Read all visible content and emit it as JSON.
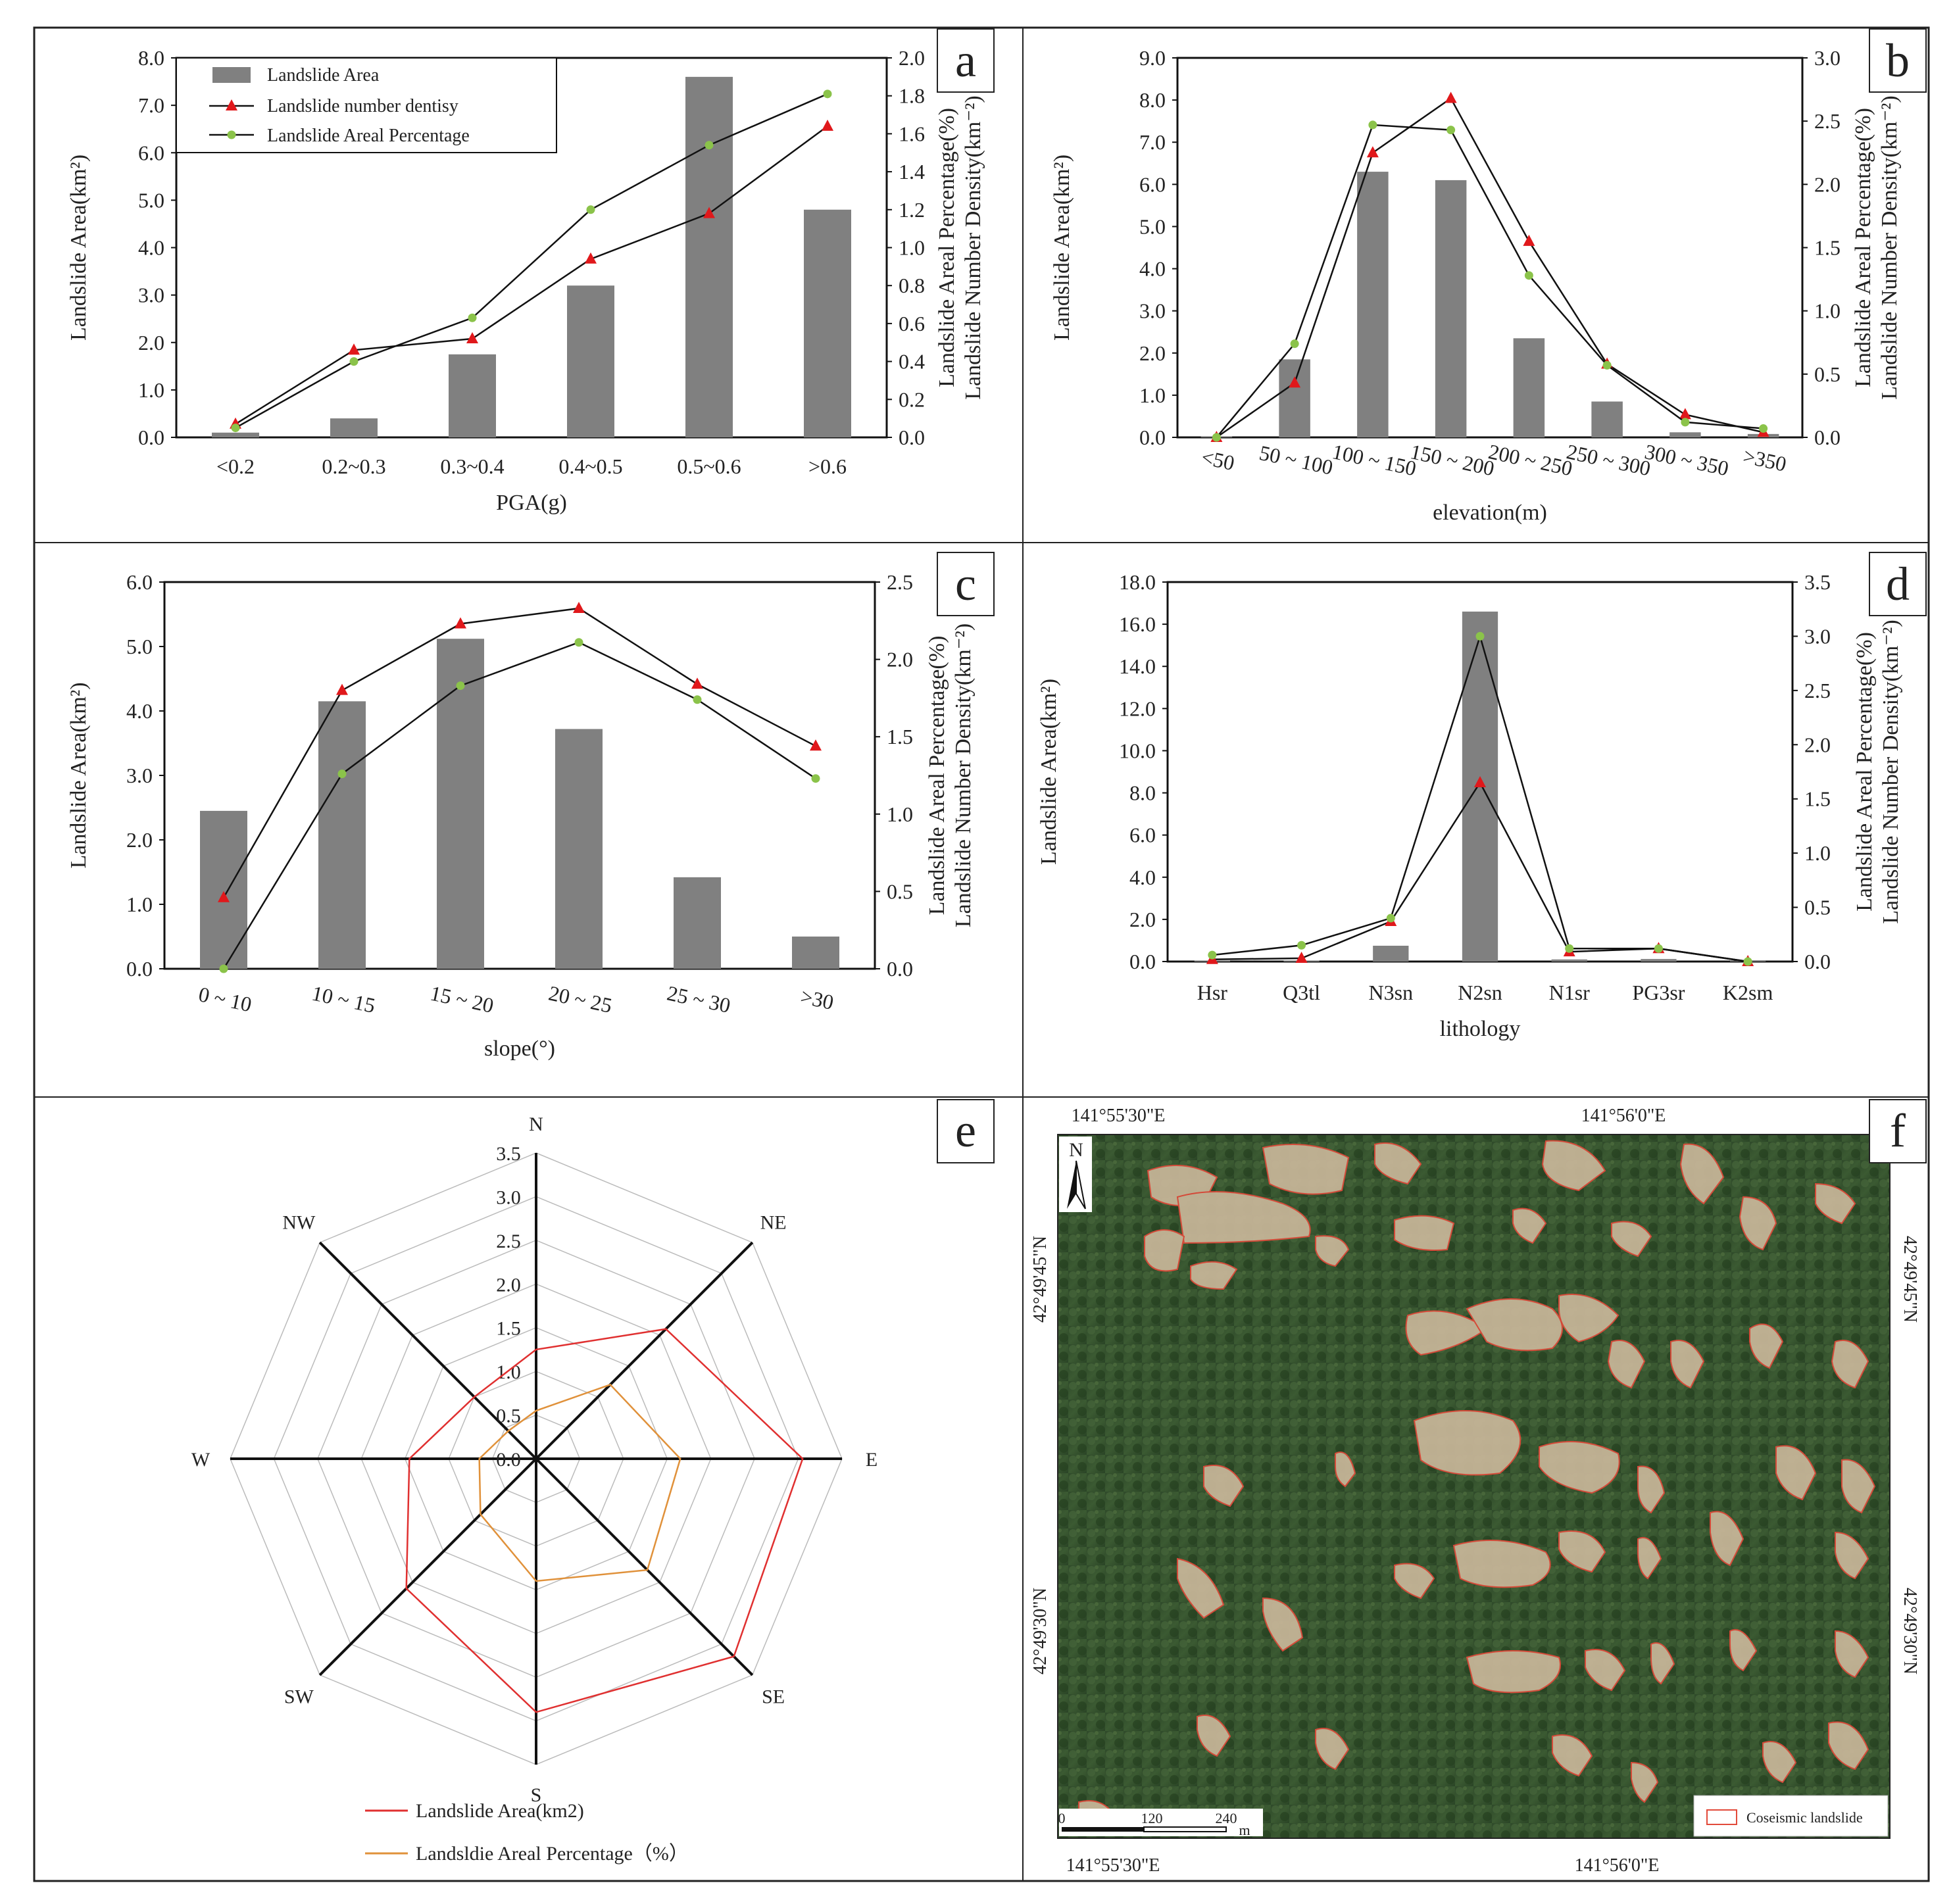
{
  "colors": {
    "bar": "#808080",
    "line_number": "#111111",
    "marker_number": "#e0181b",
    "line_areal": "#111111",
    "marker_areal": "#8bc34a",
    "radar_area": "#e03030",
    "radar_pct": "#e0913a"
  },
  "chart_data": [
    {
      "id": "a",
      "letter": "a",
      "type": "bar",
      "categories": [
        "<0.2",
        "0.2~0.3",
        "0.3~0.4",
        "0.4~0.5",
        "0.5~0.6",
        ">0.6"
      ],
      "series": [
        {
          "name": "Landslide Area",
          "axis": "left",
          "type": "bar",
          "values": [
            0.1,
            0.4,
            1.75,
            3.2,
            7.6,
            4.8
          ]
        },
        {
          "name": "Landslide number dentisy",
          "axis": "right",
          "type": "line",
          "marker": "triangle",
          "values": [
            0.07,
            0.46,
            0.52,
            0.94,
            1.18,
            1.64
          ]
        },
        {
          "name": "Landslide Areal Percentage",
          "axis": "right",
          "type": "line",
          "marker": "circle",
          "values": [
            0.05,
            0.4,
            0.63,
            1.2,
            1.54,
            1.81
          ]
        }
      ],
      "xlabel": "PGA(g)",
      "ylabel": "Landslide Area(km²)",
      "ylabel_right": [
        "Landslide Areal Percentage(%)",
        "Landslide Number Density(km⁻²)"
      ],
      "ylim": [
        0,
        8
      ],
      "ylim_right": [
        0,
        2
      ],
      "yticks": [
        "0.0",
        "1.0",
        "2.0",
        "3.0",
        "4.0",
        "5.0",
        "6.0",
        "7.0",
        "8.0"
      ],
      "yticks_right": [
        "0.0",
        "0.2",
        "0.4",
        "0.6",
        "0.8",
        "1.0",
        "1.2",
        "1.4",
        "1.6",
        "1.8",
        "2.0"
      ],
      "legend": [
        "Landslide Area",
        "Landslide number dentisy",
        "Landslide Areal Percentage"
      ],
      "legend_position": "top-left"
    },
    {
      "id": "b",
      "letter": "b",
      "type": "bar",
      "categories": [
        "<50",
        "50 ~ 100",
        "100 ~ 150",
        "150 ~ 200",
        "200 ~ 250",
        "250 ~ 300",
        "300 ~ 350",
        ">350"
      ],
      "series": [
        {
          "name": "Landslide Area",
          "axis": "left",
          "type": "bar",
          "values": [
            0.02,
            1.85,
            6.3,
            6.1,
            2.35,
            0.85,
            0.12,
            0.08
          ]
        },
        {
          "name": "Landslide number dentisy",
          "axis": "right",
          "type": "line",
          "marker": "triangle",
          "values": [
            0.0,
            0.43,
            2.25,
            2.68,
            1.55,
            0.58,
            0.18,
            0.04
          ]
        },
        {
          "name": "Landslide Areal Percentage",
          "axis": "right",
          "type": "line",
          "marker": "circle",
          "values": [
            0.0,
            0.74,
            2.47,
            2.43,
            1.28,
            0.57,
            0.12,
            0.07
          ]
        }
      ],
      "xlabel": "elevation(m)",
      "ylabel": "Landslide Area(km²)",
      "ylabel_right": [
        "Landslide Areal Percentage(%)",
        "Landslide Number Density(km⁻²)"
      ],
      "ylim": [
        0,
        9
      ],
      "ylim_right": [
        0,
        3
      ],
      "yticks": [
        "0.0",
        "1.0",
        "2.0",
        "3.0",
        "4.0",
        "5.0",
        "6.0",
        "7.0",
        "8.0",
        "9.0"
      ],
      "yticks_right": [
        "0.0",
        "0.5",
        "1.0",
        "1.5",
        "2.0",
        "2.5",
        "3.0"
      ]
    },
    {
      "id": "c",
      "letter": "c",
      "type": "bar",
      "categories": [
        "0 ~ 10",
        "10 ~ 15",
        "15 ~ 20",
        "20 ~ 25",
        "25 ~ 30",
        ">30"
      ],
      "series": [
        {
          "name": "Landslide Area",
          "axis": "left",
          "type": "bar",
          "values": [
            2.45,
            4.15,
            5.12,
            3.72,
            1.42,
            0.5
          ]
        },
        {
          "name": "Landslide number dentisy",
          "axis": "right",
          "type": "line",
          "marker": "triangle",
          "values": [
            0.46,
            1.8,
            2.23,
            2.33,
            1.84,
            1.44
          ]
        },
        {
          "name": "Landslide Areal Percentage",
          "axis": "right",
          "type": "line",
          "marker": "circle",
          "values": [
            0.0,
            1.26,
            1.83,
            2.11,
            1.74,
            1.23
          ]
        }
      ],
      "xlabel": "slope(°)",
      "ylabel": "Landslide Area(km²)",
      "ylabel_right": [
        "Landslide Areal Percentage(%)",
        "Landslide Number Density(km⁻²)"
      ],
      "ylim": [
        0,
        6
      ],
      "ylim_right": [
        0,
        2.5
      ],
      "yticks": [
        "0.0",
        "1.0",
        "2.0",
        "3.0",
        "4.0",
        "5.0",
        "6.0"
      ],
      "yticks_right": [
        "0.0",
        "0.5",
        "1.0",
        "1.5",
        "2.0",
        "2.5"
      ]
    },
    {
      "id": "d",
      "letter": "d",
      "type": "bar",
      "categories": [
        "Hsr",
        "Q3tl",
        "N3sn",
        "N2sn",
        "N1sr",
        "PG3sr",
        "K2sm"
      ],
      "series": [
        {
          "name": "Landslide Area",
          "axis": "left",
          "type": "bar",
          "values": [
            0.05,
            0.05,
            0.75,
            16.6,
            0.1,
            0.12,
            0.03
          ]
        },
        {
          "name": "Landslide number dentisy",
          "axis": "right",
          "type": "line",
          "marker": "triangle",
          "values": [
            0.02,
            0.03,
            0.37,
            1.65,
            0.09,
            0.12,
            0.0
          ]
        },
        {
          "name": "Landslide Areal Percentage",
          "axis": "right",
          "type": "line",
          "marker": "circle",
          "values": [
            0.06,
            0.15,
            0.4,
            3.0,
            0.12,
            0.12,
            0.0
          ]
        }
      ],
      "xlabel": "lithology",
      "ylabel": "Landslide Area(km²)",
      "ylabel_right": [
        "Landslide Areal Percentage(%)",
        "Landslide Number Density(km⁻²)"
      ],
      "ylim": [
        0,
        18
      ],
      "ylim_right": [
        0,
        3.5
      ],
      "yticks": [
        "0.0",
        "2.0",
        "4.0",
        "6.0",
        "8.0",
        "10.0",
        "12.0",
        "14.0",
        "16.0",
        "18.0"
      ],
      "yticks_right": [
        "0.0",
        "0.5",
        "1.0",
        "1.5",
        "2.0",
        "2.5",
        "3.0",
        "3.5"
      ]
    },
    {
      "id": "e",
      "letter": "e",
      "type": "radar",
      "axes": [
        "N",
        "NE",
        "E",
        "SE",
        "S",
        "SW",
        "W",
        "NW"
      ],
      "rmax": 3.5,
      "rings": [
        "0.0",
        "0.5",
        "1.0",
        "1.5",
        "2.0",
        "2.5",
        "3.0",
        "3.5"
      ],
      "series": [
        {
          "name": "Landslide Area(km2)",
          "values": [
            1.25,
            2.1,
            3.05,
            3.2,
            2.9,
            2.1,
            1.45,
            1.0
          ]
        },
        {
          "name": "Landsldie Areal Percentage（%）",
          "values": [
            0.55,
            1.2,
            1.65,
            1.8,
            1.4,
            0.9,
            0.65,
            0.45
          ]
        }
      ]
    }
  ],
  "map": {
    "letter": "f",
    "top_coords": [
      "141°55'30\"E",
      "141°56'0\"E"
    ],
    "bottom_coords": [
      "141°55'30\"E",
      "141°56'0\"E"
    ],
    "left_coords": [
      "42°49'45\"N",
      "42°49'30\"N"
    ],
    "right_coords": [
      "42°49'45\"N",
      "42°49'30\"N"
    ],
    "north_label": "N",
    "scale_labels": [
      "0",
      "120",
      "240",
      "m"
    ],
    "legend_label": "Coseismic landslide"
  }
}
